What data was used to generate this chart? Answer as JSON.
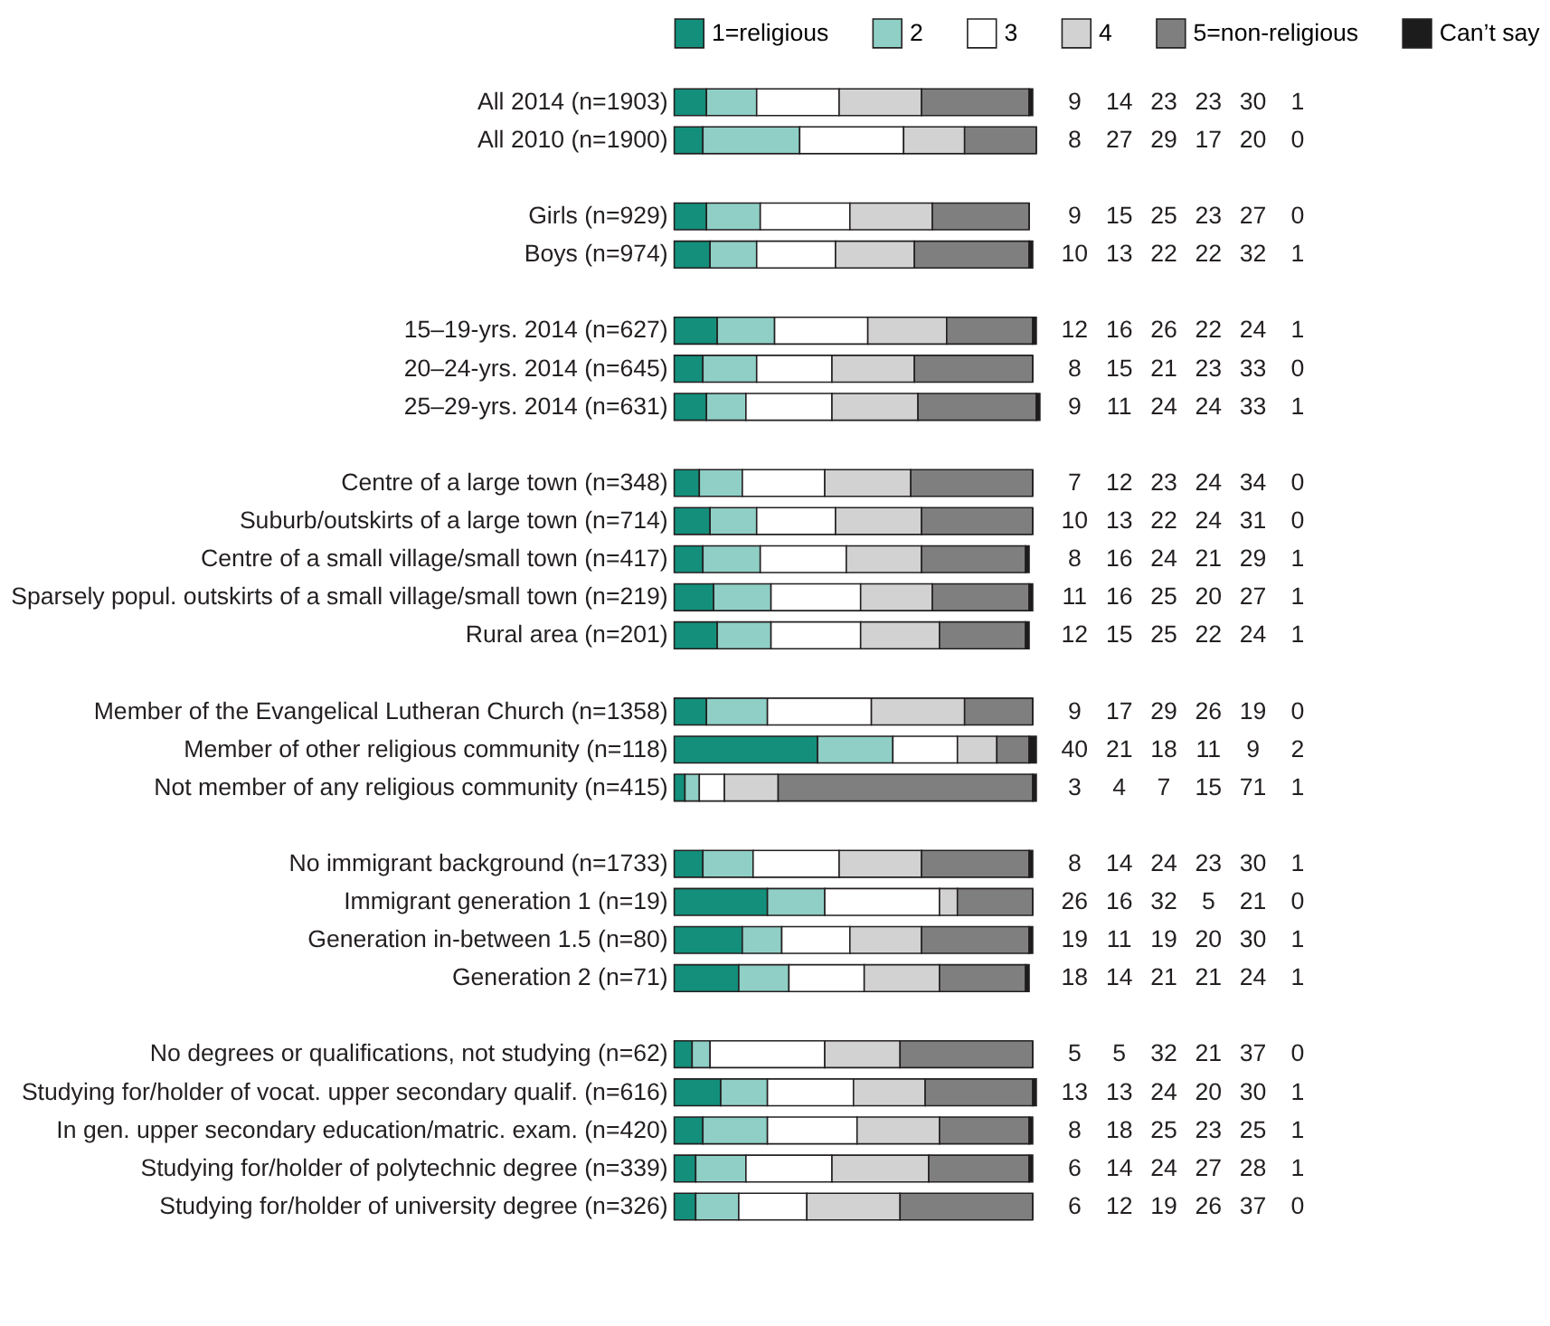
{
  "chart_data": {
    "type": "bar",
    "orientation": "horizontal",
    "stacked": true,
    "data_labels": true,
    "legend": "top",
    "grid": false,
    "tick_labels": "y",
    "xlim": [
      0,
      102
    ],
    "categories": [
      "All 2014 (n=1903)",
      "All 2010 (n=1900)",
      null,
      "Girls (n=929)",
      "Boys (n=974)",
      null,
      "15–19-yrs. 2014 (n=627)",
      "20–24-yrs. 2014 (n=645)",
      "25–29-yrs. 2014 (n=631)",
      null,
      "Centre of a large town (n=348)",
      "Suburb/outskirts of a large town (n=714)",
      "Centre of a small village/small town (n=417)",
      "Sparsely popul. outskirts of a small village/small town (n=219)",
      "Rural area (n=201)",
      null,
      "Member of the Evangelical Lutheran Church (n=1358)",
      "Member of other religious community (n=118)",
      "Not member of any religious community (n=415)",
      null,
      "No immigrant background (n=1733)",
      "Immigrant generation 1 (n=19)",
      "Generation in-between 1.5 (n=80)",
      "Generation 2 (n=71)",
      null,
      "No degrees or qualifications, not studying (n=62)",
      "Studying for/holder of vocat. upper secondary qualif. (n=616)",
      "In gen. upper secondary education/matric. exam. (n=420)",
      "Studying for/holder of polytechnic degree (n=339)",
      "Studying for/holder of university degree (n=326)"
    ],
    "series": [
      {
        "name": "1=religious",
        "color": "#138f7b",
        "values": [
          9,
          8,
          null,
          9,
          10,
          null,
          12,
          8,
          9,
          null,
          7,
          10,
          8,
          11,
          12,
          null,
          9,
          40,
          3,
          null,
          8,
          26,
          19,
          18,
          null,
          5,
          13,
          8,
          6,
          6
        ]
      },
      {
        "name": "2",
        "color": "#8fcfc6",
        "values": [
          14,
          27,
          null,
          15,
          13,
          null,
          16,
          15,
          11,
          null,
          12,
          13,
          16,
          16,
          15,
          null,
          17,
          21,
          4,
          null,
          14,
          16,
          11,
          14,
          null,
          5,
          13,
          18,
          14,
          12
        ]
      },
      {
        "name": "3",
        "color": "#ffffff",
        "values": [
          23,
          29,
          null,
          25,
          22,
          null,
          26,
          21,
          24,
          null,
          23,
          22,
          24,
          25,
          25,
          null,
          29,
          18,
          7,
          null,
          24,
          32,
          19,
          21,
          null,
          32,
          24,
          25,
          24,
          19
        ]
      },
      {
        "name": "4",
        "color": "#d2d2d3",
        "values": [
          23,
          17,
          null,
          23,
          22,
          null,
          22,
          23,
          24,
          null,
          24,
          24,
          21,
          20,
          22,
          null,
          26,
          11,
          15,
          null,
          23,
          5,
          20,
          21,
          null,
          21,
          20,
          23,
          27,
          26
        ]
      },
      {
        "name": "5=non-religious",
        "color": "#7f7f80",
        "values": [
          30,
          20,
          null,
          27,
          32,
          null,
          24,
          33,
          33,
          null,
          34,
          31,
          29,
          27,
          24,
          null,
          19,
          9,
          71,
          null,
          30,
          21,
          30,
          24,
          null,
          37,
          30,
          25,
          28,
          37
        ]
      },
      {
        "name": "Can’t say",
        "color": "#1c1c1c",
        "values": [
          1,
          0,
          null,
          0,
          1,
          null,
          1,
          0,
          1,
          null,
          0,
          0,
          1,
          1,
          1,
          null,
          0,
          2,
          1,
          null,
          1,
          0,
          1,
          1,
          null,
          0,
          1,
          1,
          1,
          0
        ]
      }
    ]
  }
}
